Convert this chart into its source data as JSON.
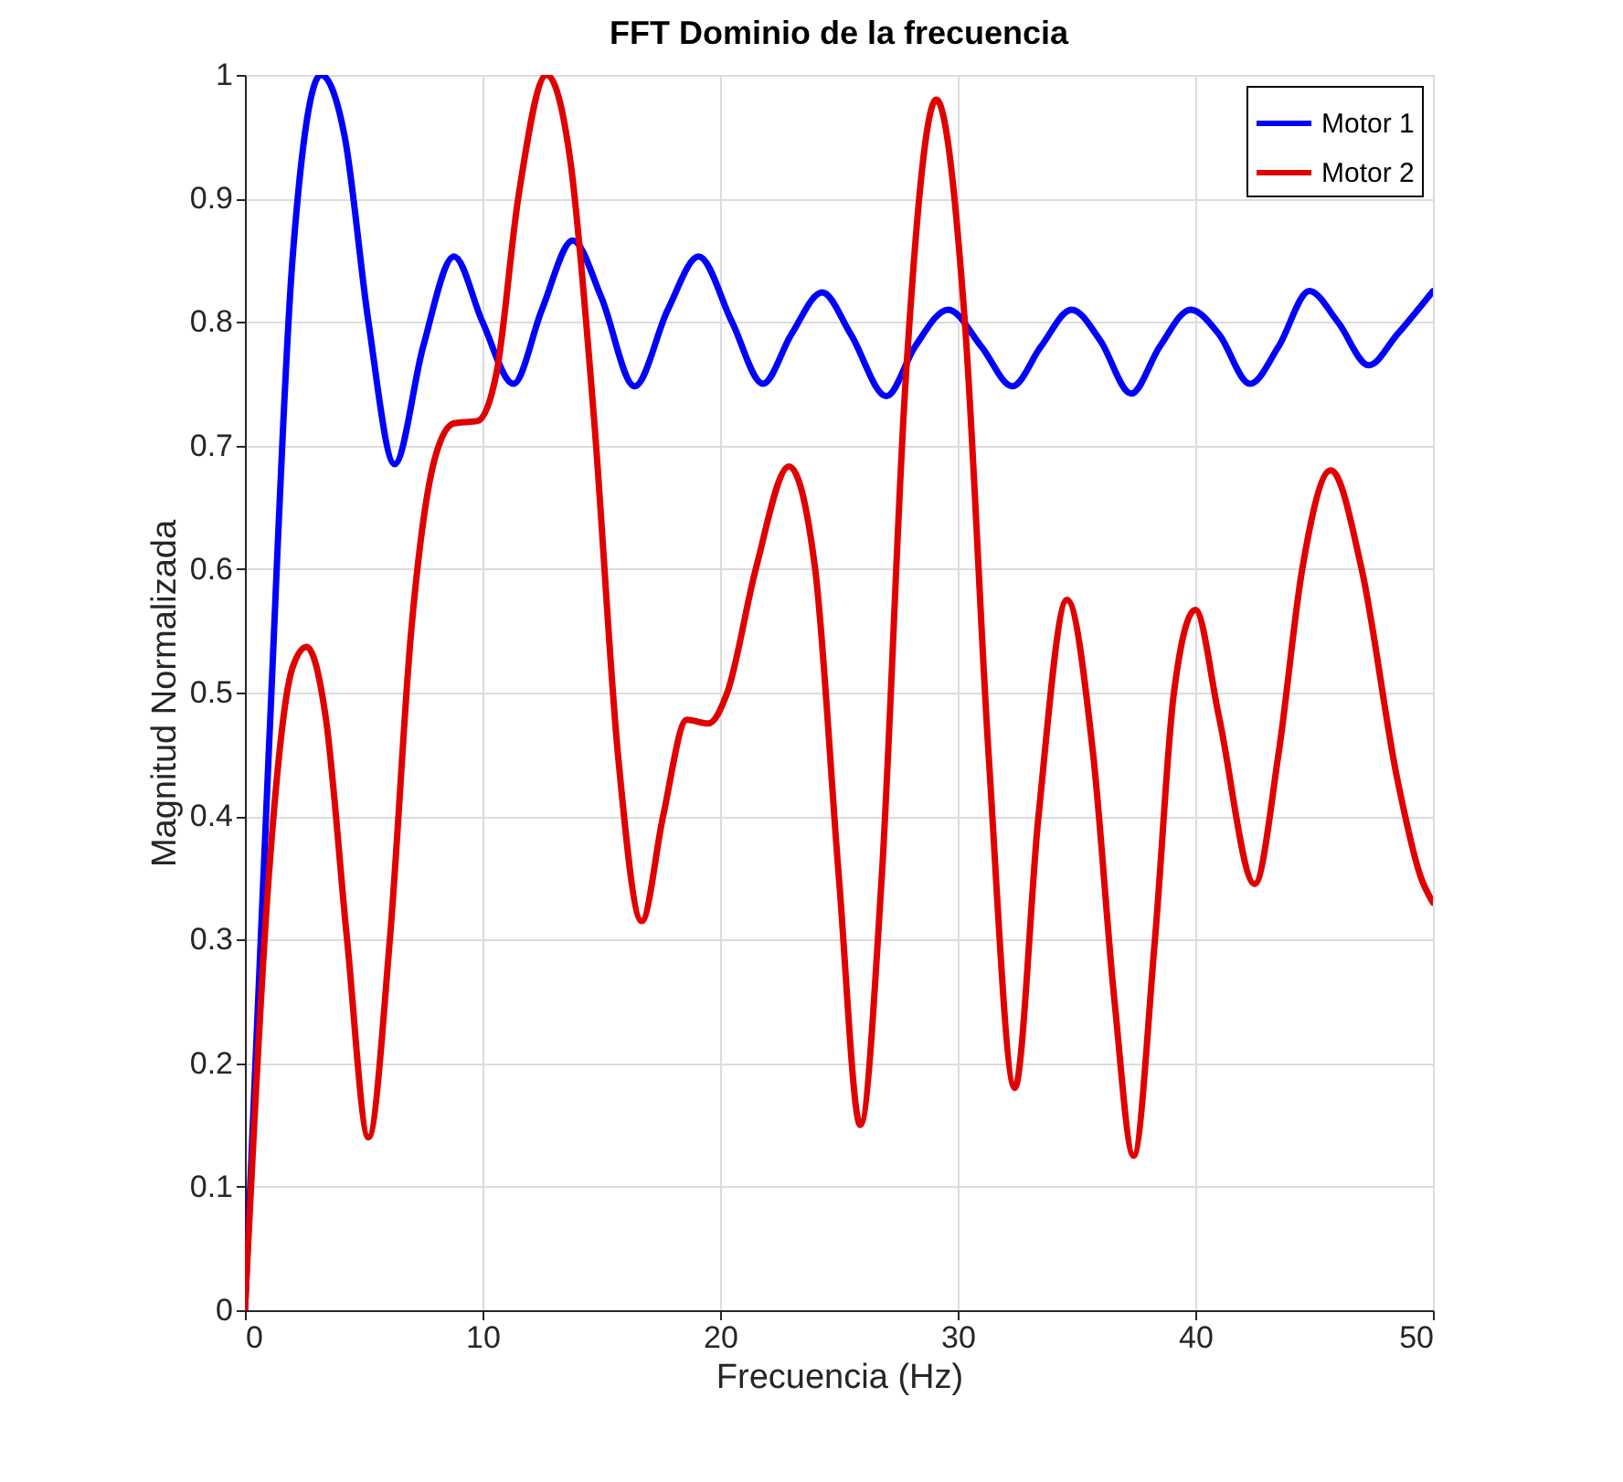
{
  "chart_data": {
    "type": "line",
    "title": "FFT Dominio de la frecuencia",
    "xlabel": "Frecuencia (Hz)",
    "ylabel": "Magnitud Normalizada",
    "xlim": [
      0,
      50
    ],
    "ylim": [
      0,
      1
    ],
    "xticks": [
      0,
      10,
      20,
      30,
      40,
      50
    ],
    "yticks": [
      0,
      0.1,
      0.2,
      0.3,
      0.4,
      0.5,
      0.6,
      0.7,
      0.8,
      0.9,
      1
    ],
    "grid": true,
    "legend": "top right",
    "marker": "none",
    "line_style": "solid",
    "series": [
      {
        "name": "Motor 1",
        "color": "#0000ff",
        "x": [
          0,
          1,
          2,
          3.2,
          4.2,
          5.2,
          6.3,
          7.5,
          8.8,
          10,
          11.3,
          12.5,
          13.8,
          15,
          16.4,
          17.8,
          19.1,
          20.5,
          21.8,
          23,
          24.3,
          25.5,
          27,
          28.2,
          29.6,
          31,
          32.3,
          33.5,
          34.8,
          36,
          37.3,
          38.5,
          39.8,
          41,
          42.3,
          43.5,
          44.8,
          46,
          47.3,
          48.5,
          50
        ],
        "values": [
          0,
          0.45,
          0.85,
          1.0,
          0.95,
          0.8,
          0.685,
          0.78,
          0.853,
          0.8,
          0.75,
          0.81,
          0.866,
          0.82,
          0.748,
          0.81,
          0.853,
          0.8,
          0.75,
          0.79,
          0.824,
          0.79,
          0.74,
          0.78,
          0.81,
          0.78,
          0.748,
          0.78,
          0.81,
          0.785,
          0.742,
          0.78,
          0.81,
          0.79,
          0.75,
          0.78,
          0.825,
          0.8,
          0.765,
          0.79,
          0.825
        ]
      },
      {
        "name": "Motor 2",
        "color": "#e00000",
        "x": [
          0,
          1,
          2,
          2.6,
          3.4,
          4.3,
          5.2,
          6.1,
          7,
          8,
          8.8,
          9.8,
          10.6,
          11.5,
          12.7,
          13.7,
          14.7,
          15.7,
          16.7,
          17.6,
          18.6,
          19.5,
          20.3,
          21.5,
          22.9,
          24,
          25,
          25.9,
          26.8,
          27.8,
          29.1,
          30.3,
          31.3,
          32.4,
          33.4,
          34.6,
          35.7,
          36.6,
          37.4,
          38.3,
          39.1,
          40,
          41,
          42.5,
          43.5,
          44.5,
          45.7,
          47,
          48.5,
          49.5,
          50
        ],
        "values": [
          0,
          0.35,
          0.52,
          0.537,
          0.48,
          0.3,
          0.14,
          0.3,
          0.55,
          0.69,
          0.718,
          0.72,
          0.76,
          0.9,
          1.0,
          0.93,
          0.72,
          0.45,
          0.315,
          0.4,
          0.478,
          0.475,
          0.5,
          0.6,
          0.683,
          0.6,
          0.35,
          0.15,
          0.35,
          0.75,
          0.98,
          0.8,
          0.45,
          0.18,
          0.4,
          0.575,
          0.45,
          0.25,
          0.125,
          0.3,
          0.5,
          0.567,
          0.48,
          0.345,
          0.45,
          0.6,
          0.68,
          0.6,
          0.43,
          0.35,
          0.33
        ]
      }
    ]
  }
}
